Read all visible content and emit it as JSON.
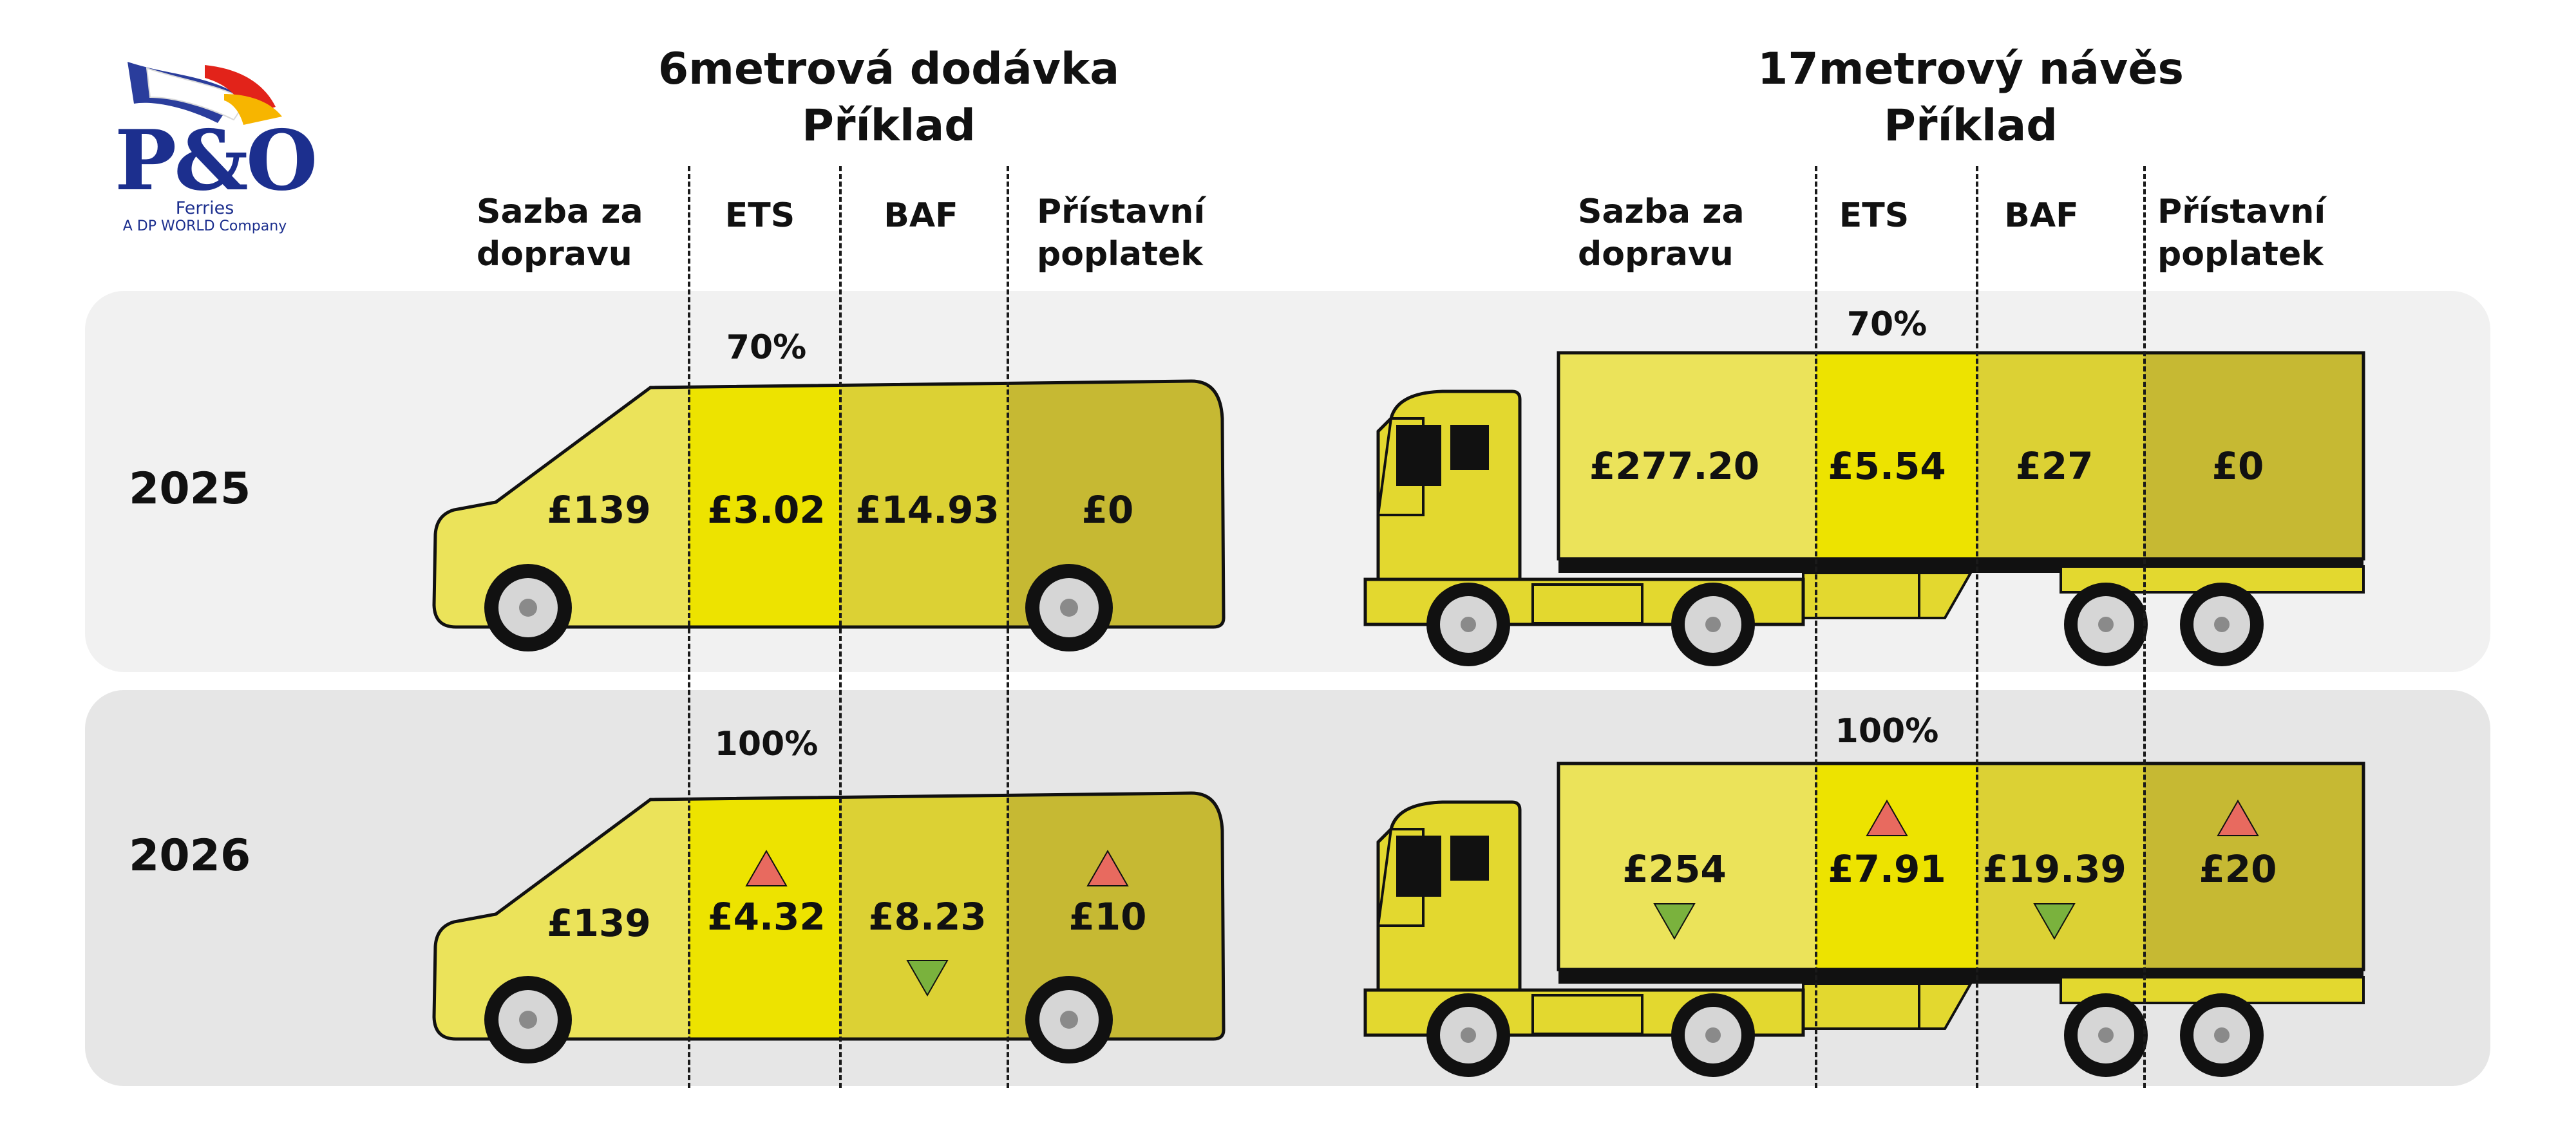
{
  "logo": {
    "mark": "P&O",
    "sub": "Ferries",
    "tagline": "A DP WORLD Company"
  },
  "van": {
    "title_line1": "6metrová dodávka",
    "title_line2": "Příklad",
    "columns": {
      "rate": [
        "Sazba za",
        "dopravu"
      ],
      "ets": "ETS",
      "baf": "BAF",
      "port": [
        "Přístavní",
        "poplatek"
      ]
    }
  },
  "truck": {
    "title_line1": "17metrový návěs",
    "title_line2": "Příklad",
    "columns": {
      "rate": [
        "Sazba za",
        "dopravu"
      ],
      "ets": "ETS",
      "baf": "BAF",
      "port": [
        "Přístavní",
        "poplatek"
      ]
    }
  },
  "rows": [
    {
      "year": "2025",
      "van": {
        "ets_percent": "70%",
        "rate": "£139",
        "ets": "£3.02",
        "baf": "£14.93",
        "port": "£0"
      },
      "truck": {
        "ets_percent": "70%",
        "rate": "£277.20",
        "ets": "£5.54",
        "baf": "£27",
        "port": "£0"
      }
    },
    {
      "year": "2026",
      "van": {
        "ets_percent": "100%",
        "rate": "£139",
        "ets": "£4.32",
        "baf": "£8.23",
        "port": "£10",
        "ets_trend": "up",
        "baf_trend": "down",
        "port_trend": "up"
      },
      "truck": {
        "ets_percent": "100%",
        "rate": "£254",
        "ets": "£7.91",
        "baf": "£19.39",
        "port": "£20",
        "rate_trend": "down",
        "ets_trend": "up",
        "baf_trend": "down",
        "port_trend": "up"
      }
    }
  ],
  "colors": {
    "panel_2025": "#f1f1f1",
    "panel_2026": "#e6e6e6",
    "rate_fill": "#ebe35a",
    "ets_fill": "#ede300",
    "baf_fill": "#dcd134",
    "port_fill": "#c6b933",
    "cab_fill": "#e3d82f",
    "up_arrow": "#e86a5f",
    "down_arrow": "#7ab23d",
    "brand_blue": "#1c2f8e"
  },
  "icons": [
    "po-ferries-logo",
    "van-icon",
    "articulated-truck-icon",
    "arrow-up-icon",
    "arrow-down-icon"
  ]
}
